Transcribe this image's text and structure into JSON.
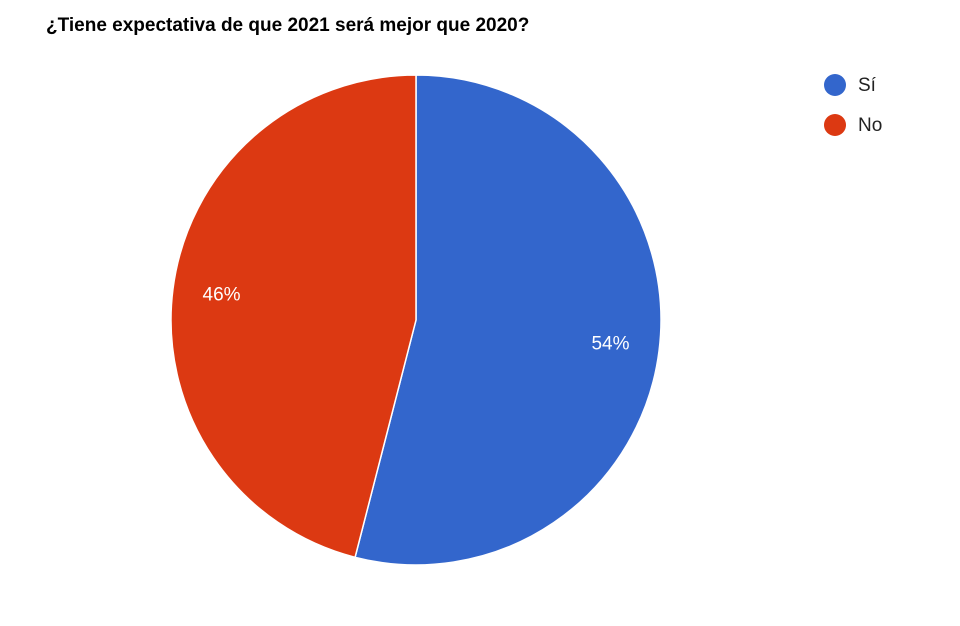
{
  "chart_data": {
    "type": "pie",
    "title": "¿Tiene expectativa de que 2021 será mejor que 2020?",
    "categories": [
      "Sí",
      "No"
    ],
    "values": [
      54,
      46
    ],
    "value_labels": [
      "54%",
      "46%"
    ],
    "colors": [
      "#3366cc",
      "#dc3912"
    ],
    "legend": "top-right"
  }
}
